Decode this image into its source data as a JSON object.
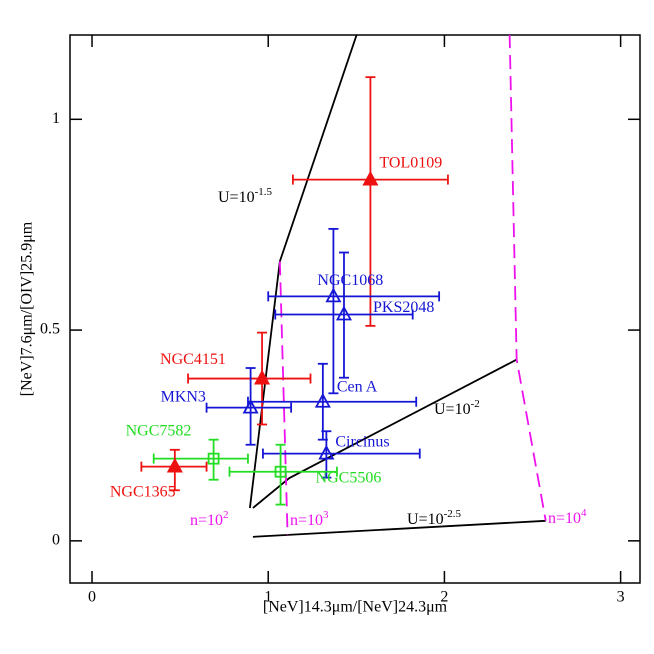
{
  "chart_data": {
    "type": "errorbar-scatter",
    "xlabel": "[NeV]14.3μm/[NeV]24.3μm",
    "ylabel": "[NeV]7.6μm/[OIV]25.9μm",
    "xlim": [
      -0.125,
      3.11
    ],
    "ylim": [
      -0.1,
      1.2
    ],
    "xticks": [
      0,
      1,
      2,
      3
    ],
    "yticks": [
      0,
      0.5,
      1
    ],
    "series": [
      {
        "name": "TOL0109",
        "color": "#ee1111",
        "marker": "filled-triangle",
        "x": 1.58,
        "y": 0.857,
        "x_low": 1.14,
        "x_high": 2.02,
        "y_low": 0.51,
        "y_high": 1.1
      },
      {
        "name": "NGC1068",
        "color": "#1515d5",
        "marker": "open-triangle",
        "x": 1.37,
        "y": 0.58,
        "x_low": 1.0,
        "x_high": 1.97,
        "y_low": 0.35,
        "y_high": 0.74
      },
      {
        "name": "PKS2048",
        "color": "#1515d5",
        "marker": "open-triangle",
        "x": 1.43,
        "y": 0.537,
        "x_low": 1.04,
        "x_high": 1.82,
        "y_low": 0.387,
        "y_high": 0.684
      },
      {
        "name": "NGC4151",
        "color": "#ee1111",
        "marker": "filled-triangle",
        "x": 0.965,
        "y": 0.385,
        "x_low": 0.545,
        "x_high": 1.24,
        "y_low": 0.276,
        "y_high": 0.494
      },
      {
        "name": "MKN3",
        "color": "#1515d5",
        "marker": "open-triangle",
        "x": 0.9,
        "y": 0.316,
        "x_low": 0.65,
        "x_high": 1.13,
        "y_low": 0.228,
        "y_high": 0.41
      },
      {
        "name": "Cen A",
        "color": "#1515d5",
        "marker": "open-triangle",
        "x": 1.31,
        "y": 0.33,
        "x_low": 0.885,
        "x_high": 1.84,
        "y_low": 0.24,
        "y_high": 0.42
      },
      {
        "name": "Circinus",
        "color": "#1515d5",
        "marker": "open-triangle",
        "x": 1.33,
        "y": 0.207,
        "x_low": 0.97,
        "x_high": 1.86,
        "y_low": 0.15,
        "y_high": 0.26
      },
      {
        "name": "NGC7582",
        "color": "#22dd22",
        "marker": "open-square",
        "x": 0.69,
        "y": 0.195,
        "x_low": 0.35,
        "x_high": 0.885,
        "y_low": 0.145,
        "y_high": 0.24
      },
      {
        "name": "NGC5506",
        "color": "#22dd22",
        "marker": "open-square",
        "x": 1.07,
        "y": 0.164,
        "x_low": 0.78,
        "x_high": 1.39,
        "y_low": 0.086,
        "y_high": 0.228
      },
      {
        "name": "NGC1365",
        "color": "#ee1111",
        "marker": "filled-triangle",
        "x": 0.47,
        "y": 0.176,
        "x_low": 0.28,
        "x_high": 0.65,
        "y_low": 0.12,
        "y_high": 0.216
      }
    ],
    "models": [
      {
        "label": "U=10",
        "exponent": "-1.5",
        "color": "#000000",
        "dashed": false,
        "x": [
          0.896,
          1.066,
          1.503
        ],
        "y": [
          0.078,
          0.663,
          1.202
        ]
      },
      {
        "label": "U=10",
        "exponent": "-2",
        "color": "#000000",
        "dashed": false,
        "x": [
          0.913,
          1.12,
          2.41
        ],
        "y": [
          0.078,
          0.149,
          0.43
        ]
      },
      {
        "label": "U=10",
        "exponent": "-2.5",
        "color": "#000000",
        "dashed": false,
        "x": [
          0.913,
          2.575
        ],
        "y": [
          0.0095,
          0.0475
        ]
      },
      {
        "label": "n=10",
        "exponent": "2",
        "color": "#ee11ee",
        "dashed": true,
        "x": [],
        "y": []
      },
      {
        "label": "n=10",
        "exponent": "3",
        "color": "#ee11ee",
        "dashed": true,
        "x": [
          1.066,
          1.11
        ],
        "y": [
          0.663,
          0.014
        ]
      },
      {
        "label": "n=10",
        "exponent": "4",
        "color": "#ee11ee",
        "dashed": true,
        "x": [
          2.37,
          2.41,
          2.575
        ],
        "y": [
          1.202,
          0.43,
          0.0475
        ]
      }
    ]
  }
}
